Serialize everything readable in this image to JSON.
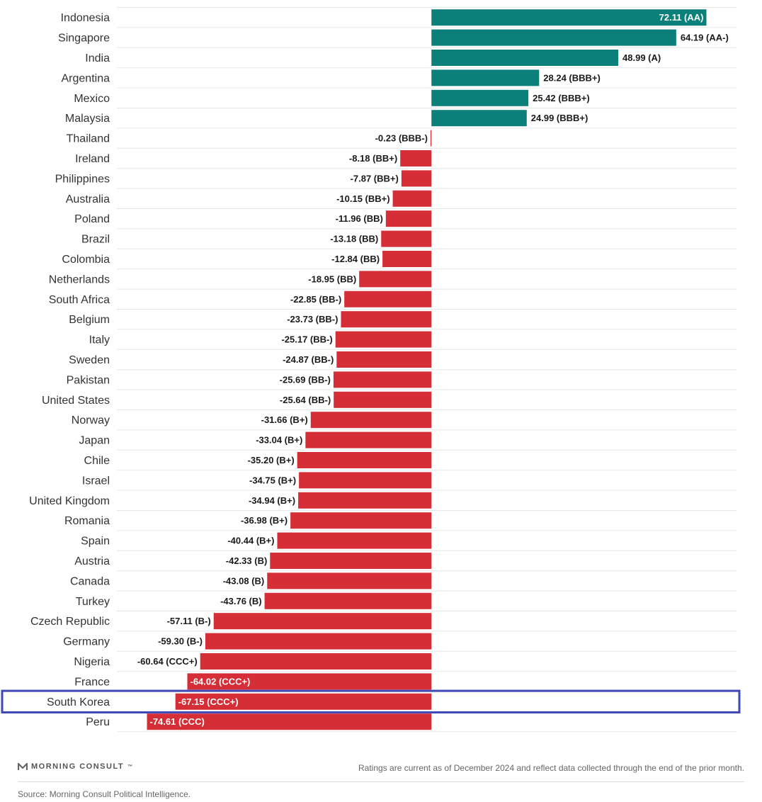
{
  "chart_data": {
    "type": "bar",
    "orientation": "horizontal",
    "categories": [
      "Indonesia",
      "Singapore",
      "India",
      "Argentina",
      "Mexico",
      "Malaysia",
      "Thailand",
      "Ireland",
      "Philippines",
      "Australia",
      "Poland",
      "Brazil",
      "Colombia",
      "Netherlands",
      "South Africa",
      "Belgium",
      "Italy",
      "Sweden",
      "Pakistan",
      "United States",
      "Norway",
      "Japan",
      "Chile",
      "Israel",
      "United Kingdom",
      "Romania",
      "Spain",
      "Austria",
      "Canada",
      "Turkey",
      "Czech Republic",
      "Germany",
      "Nigeria",
      "France",
      "South Korea",
      "Peru"
    ],
    "values": [
      72.11,
      64.19,
      48.99,
      28.24,
      25.42,
      24.99,
      -0.23,
      -8.18,
      -7.87,
      -10.15,
      -11.96,
      -13.18,
      -12.84,
      -18.95,
      -22.85,
      -23.73,
      -25.17,
      -24.87,
      -25.69,
      -25.64,
      -31.66,
      -33.04,
      -35.2,
      -34.75,
      -34.94,
      -36.98,
      -40.44,
      -42.33,
      -43.08,
      -43.76,
      -57.11,
      -59.3,
      -60.64,
      -64.02,
      -67.15,
      -74.61
    ],
    "labels": [
      "72.11 (AA)",
      "64.19 (AA-)",
      "48.99 (A)",
      "28.24 (BBB+)",
      "25.42 (BBB+)",
      "24.99 (BBB+)",
      "-0.23 (BBB-)",
      "-8.18 (BB+)",
      "-7.87 (BB+)",
      "-10.15 (BB+)",
      "-11.96 (BB)",
      "-13.18 (BB)",
      "-12.84 (BB)",
      "-18.95 (BB)",
      "-22.85 (BB-)",
      "-23.73 (BB-)",
      "-25.17 (BB-)",
      "-24.87 (BB-)",
      "-25.69 (BB-)",
      "-25.64 (BB-)",
      "-31.66 (B+)",
      "-33.04 (B+)",
      "-35.20 (B+)",
      "-34.75 (B+)",
      "-34.94 (B+)",
      "-36.98 (B+)",
      "-40.44 (B+)",
      "-42.33 (B)",
      "-43.08 (B)",
      "-43.76 (B)",
      "-57.11 (B-)",
      "-59.30 (B-)",
      "-60.64 (CCC+)",
      "-64.02 (CCC+)",
      "-67.15 (CCC+)",
      "-74.61 (CCC)"
    ],
    "xlim": [
      -82.5,
      80
    ],
    "grid": false,
    "highlighted_category": "South Korea",
    "colors": {
      "positive": "#0b7f7a",
      "negative": "#d62e36",
      "highlight_box": "#3f48b8",
      "label_dark": "#1a1a1a",
      "label_light": "#ffffff",
      "row_rule": "#e6e6e6"
    }
  },
  "footer": {
    "brand": "MORNING CONSULT",
    "brand_mark": "™",
    "note": "Ratings are current as of December 2024 and reflect data collected through the end of the prior month.",
    "source": "Source: Morning Consult Political Intelligence."
  }
}
